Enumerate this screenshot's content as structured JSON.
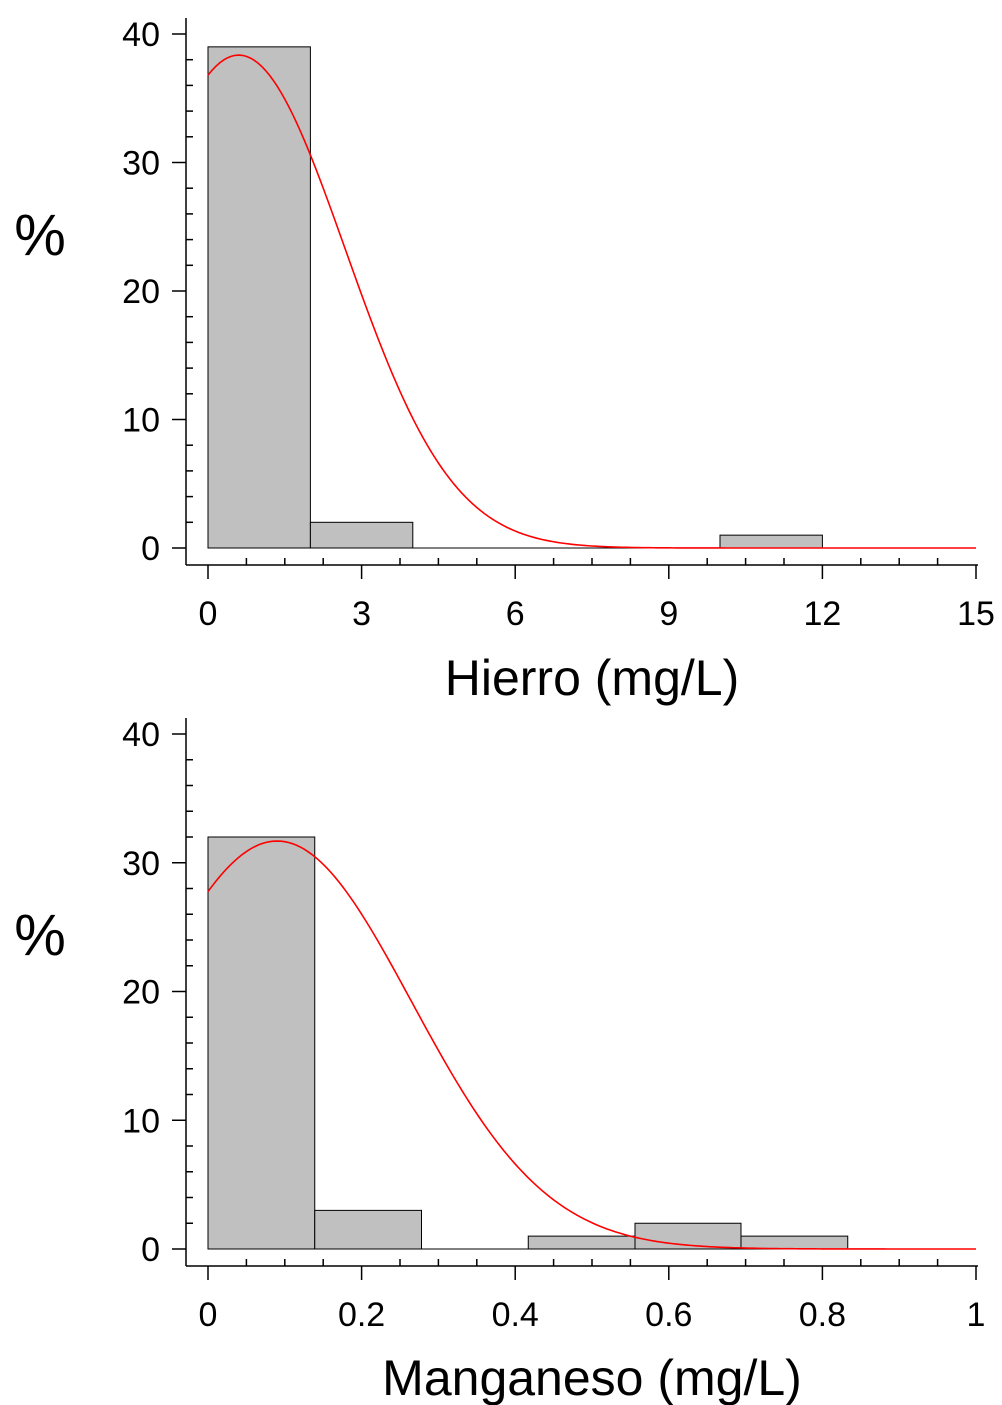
{
  "chart_data": [
    {
      "type": "bar",
      "title": "",
      "xlabel": "Hierro (mg/L)",
      "ylabel": "%",
      "xlim": [
        0,
        15
      ],
      "ylim": [
        0,
        40
      ],
      "xticks": [
        "0",
        "3",
        "6",
        "9",
        "12",
        "15"
      ],
      "yticks": [
        "0",
        "10",
        "20",
        "30",
        "40"
      ],
      "bins": [
        {
          "x0": 0,
          "x1": 2,
          "value": 39
        },
        {
          "x0": 2,
          "x1": 4,
          "value": 2
        },
        {
          "x0": 10,
          "x1": 12,
          "value": 1
        }
      ],
      "fit": {
        "type": "normal",
        "mean": 0.6,
        "sd": 2.08,
        "color": "#ff0000"
      },
      "bar_color": "#c0c0c0"
    },
    {
      "type": "bar",
      "title": "",
      "xlabel": "Manganeso (mg/L)",
      "ylabel": "%",
      "xlim": [
        0,
        1
      ],
      "ylim": [
        0,
        40
      ],
      "xticks": [
        "0",
        "0.2",
        "0.4",
        "0.6",
        "0.8",
        "1"
      ],
      "yticks": [
        "0",
        "10",
        "20",
        "30",
        "40"
      ],
      "bins": [
        {
          "x0": 0,
          "x1": 0.139,
          "value": 32
        },
        {
          "x0": 0.139,
          "x1": 0.278,
          "value": 3
        },
        {
          "x0": 0.417,
          "x1": 0.556,
          "value": 1
        },
        {
          "x0": 0.556,
          "x1": 0.694,
          "value": 2
        },
        {
          "x0": 0.694,
          "x1": 0.833,
          "value": 1
        }
      ],
      "fit": {
        "type": "normal",
        "mean": 0.09,
        "sd": 0.175,
        "color": "#ff0000"
      },
      "bar_color": "#c0c0c0"
    }
  ]
}
